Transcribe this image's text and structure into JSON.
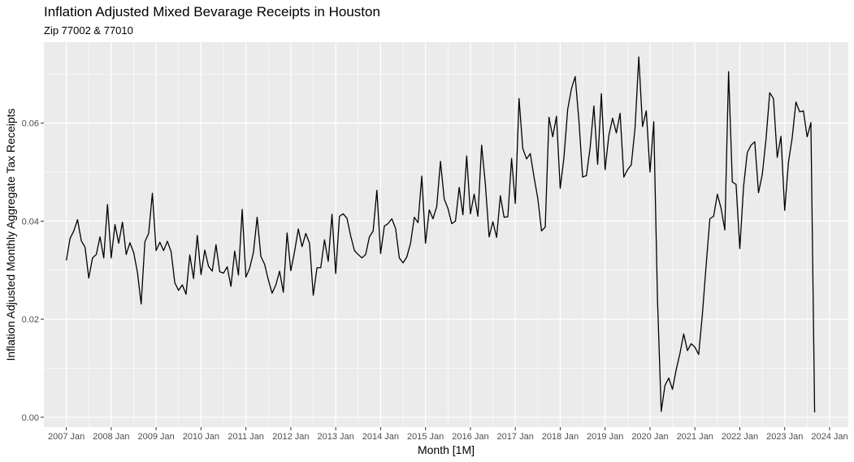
{
  "chart_data": {
    "type": "line",
    "title": "Inflation Adjusted Mixed Bevarage Receipts in Houston",
    "subtitle": "Zip 77002 & 77010",
    "xlabel": "Month [1M]",
    "ylabel": "Inflation Adjusted Monthly Aggregate Tax Receipts",
    "x_start": "2007-01",
    "x_end": "2023-09",
    "xlim": [
      "2006-07",
      "2024-06"
    ],
    "ylim": [
      -0.002,
      0.0765
    ],
    "x_ticks": [
      "2007 Jan",
      "2008 Jan",
      "2009 Jan",
      "2010 Jan",
      "2011 Jan",
      "2012 Jan",
      "2013 Jan",
      "2014 Jan",
      "2015 Jan",
      "2016 Jan",
      "2017 Jan",
      "2018 Jan",
      "2019 Jan",
      "2020 Jan",
      "2021 Jan",
      "2022 Jan",
      "2023 Jan",
      "2024 Jan"
    ],
    "y_ticks": [
      "0.00",
      "0.02",
      "0.04",
      "0.06"
    ],
    "grid": true,
    "colors": {
      "panel": "#ebebeb",
      "grid": "#ffffff",
      "line": "#000000"
    },
    "series": [
      {
        "values": [
          0.032,
          0.0365,
          0.038,
          0.0403,
          0.036,
          0.0347,
          0.0284,
          0.0325,
          0.0332,
          0.0368,
          0.0325,
          0.0434,
          0.0325,
          0.0393,
          0.0355,
          0.0398,
          0.0332,
          0.0356,
          0.0336,
          0.0296,
          0.0231,
          0.0358,
          0.0375,
          0.0457,
          0.034,
          0.0357,
          0.034,
          0.0359,
          0.0338,
          0.0274,
          0.0259,
          0.027,
          0.0251,
          0.0331,
          0.0283,
          0.0371,
          0.0291,
          0.0341,
          0.0308,
          0.0298,
          0.0352,
          0.0297,
          0.0294,
          0.0307,
          0.0267,
          0.0339,
          0.029,
          0.0424,
          0.0286,
          0.0304,
          0.0336,
          0.0408,
          0.0328,
          0.0312,
          0.028,
          0.0253,
          0.027,
          0.0298,
          0.0255,
          0.0376,
          0.0299,
          0.0338,
          0.0384,
          0.0348,
          0.0375,
          0.0355,
          0.0249,
          0.0305,
          0.0305,
          0.0362,
          0.0318,
          0.0414,
          0.0293,
          0.041,
          0.0415,
          0.0406,
          0.037,
          0.034,
          0.0332,
          0.0325,
          0.0332,
          0.0368,
          0.038,
          0.0463,
          0.0334,
          0.039,
          0.0395,
          0.0405,
          0.0385,
          0.0325,
          0.0315,
          0.0327,
          0.0355,
          0.0408,
          0.0397,
          0.0492,
          0.0355,
          0.0423,
          0.0405,
          0.043,
          0.0522,
          0.0445,
          0.0426,
          0.0395,
          0.04,
          0.0469,
          0.0413,
          0.0533,
          0.0415,
          0.0455,
          0.041,
          0.0555,
          0.0475,
          0.0368,
          0.0399,
          0.0367,
          0.0452,
          0.0408,
          0.0409,
          0.0528,
          0.0436,
          0.065,
          0.0548,
          0.0527,
          0.0538,
          0.049,
          0.0447,
          0.038,
          0.0388,
          0.0612,
          0.0572,
          0.0614,
          0.0467,
          0.053,
          0.0628,
          0.067,
          0.0695,
          0.0605,
          0.049,
          0.0493,
          0.055,
          0.0635,
          0.0516,
          0.066,
          0.0505,
          0.0575,
          0.061,
          0.058,
          0.062,
          0.049,
          0.0505,
          0.0515,
          0.059,
          0.0735,
          0.0593,
          0.0625,
          0.05,
          0.0603,
          0.024,
          0.0012,
          0.0065,
          0.008,
          0.0057,
          0.0097,
          0.013,
          0.017,
          0.0136,
          0.015,
          0.0143,
          0.0128,
          0.021,
          0.031,
          0.0405,
          0.041,
          0.0455,
          0.0426,
          0.0382,
          0.0705,
          0.048,
          0.0475,
          0.0344,
          0.047,
          0.054,
          0.0555,
          0.0562,
          0.0458,
          0.0495,
          0.0567,
          0.0662,
          0.065,
          0.053,
          0.0573,
          0.0422,
          0.052,
          0.057,
          0.0643,
          0.0623,
          0.0625,
          0.0572,
          0.0601,
          0.001
        ]
      }
    ]
  }
}
